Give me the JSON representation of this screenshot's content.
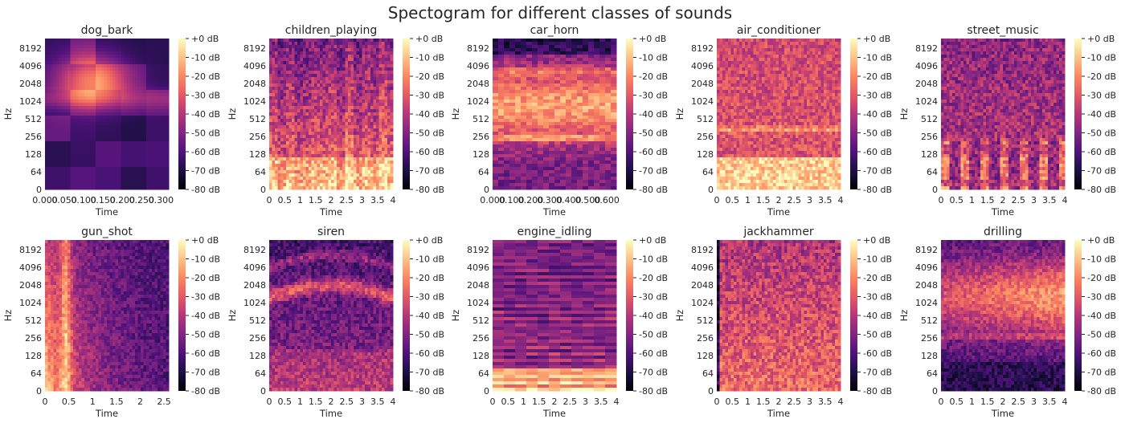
{
  "figure": {
    "title": "Spectogram for different classes of sounds"
  },
  "colormap": {
    "name": "magma",
    "stops": [
      "#000004",
      "#1c1044",
      "#4f127b",
      "#812581",
      "#b5367a",
      "#e55964",
      "#fb8761",
      "#fec287",
      "#fcfdbf"
    ]
  },
  "chart_data": [
    {
      "type": "heatmap",
      "title": "dog_bark",
      "xlabel": "Time",
      "ylabel": "Hz",
      "xlim": [
        0,
        0.32
      ],
      "xticks": [
        "0.000",
        "0.050",
        "0.100",
        "0.150",
        "0.200",
        "0.250",
        "0.300"
      ],
      "xtick_values": [
        0,
        0.05,
        0.1,
        0.15,
        0.2,
        0.25,
        0.3
      ],
      "yticks": [
        "0",
        "64",
        "128",
        "256",
        "512",
        "1024",
        "2048",
        "4096",
        "8192"
      ],
      "colorbar": {
        "min_db": -80,
        "max_db": 0,
        "tick_labels": [
          "+0 dB",
          "-10 dB",
          "-20 dB",
          "-30 dB",
          "-40 dB",
          "-50 dB",
          "-60 dB",
          "-70 dB",
          "-80 dB"
        ]
      }
    },
    {
      "type": "heatmap",
      "title": "children_playing",
      "xlabel": "Time",
      "ylabel": "Hz",
      "xlim": [
        0,
        4
      ],
      "xticks": [
        "0",
        "0.5",
        "1",
        "1.5",
        "2",
        "2.5",
        "3",
        "3.5",
        "4"
      ],
      "xtick_values": [
        0,
        0.5,
        1,
        1.5,
        2,
        2.5,
        3,
        3.5,
        4
      ],
      "yticks": [
        "0",
        "64",
        "128",
        "256",
        "512",
        "1024",
        "2048",
        "4096",
        "8192"
      ],
      "colorbar": {
        "min_db": -80,
        "max_db": 0,
        "tick_labels": [
          "+0 dB",
          "-10 dB",
          "-20 dB",
          "-30 dB",
          "-40 dB",
          "-50 dB",
          "-60 dB",
          "-70 dB",
          "-80 dB"
        ]
      }
    },
    {
      "type": "heatmap",
      "title": "car_horn",
      "xlabel": "Time",
      "ylabel": "Hz",
      "xlim": [
        0,
        0.65
      ],
      "xticks": [
        "0.000",
        "0.100",
        "0.200",
        "0.300",
        "0.400",
        "0.500",
        "0.600"
      ],
      "xtick_values": [
        0,
        0.1,
        0.2,
        0.3,
        0.4,
        0.5,
        0.6
      ],
      "yticks": [
        "0",
        "64",
        "128",
        "256",
        "512",
        "1024",
        "2048",
        "4096",
        "8192"
      ],
      "colorbar": {
        "min_db": -80,
        "max_db": 0,
        "tick_labels": [
          "+0 dB",
          "-10 dB",
          "-20 dB",
          "-30 dB",
          "-40 dB",
          "-50 dB",
          "-60 dB",
          "-70 dB",
          "-80 dB"
        ]
      }
    },
    {
      "type": "heatmap",
      "title": "air_conditioner",
      "xlabel": "Time",
      "ylabel": "Hz",
      "xlim": [
        0,
        4
      ],
      "xticks": [
        "0",
        "0.5",
        "1",
        "1.5",
        "2",
        "2.5",
        "3",
        "3.5",
        "4"
      ],
      "xtick_values": [
        0,
        0.5,
        1,
        1.5,
        2,
        2.5,
        3,
        3.5,
        4
      ],
      "yticks": [
        "0",
        "64",
        "128",
        "256",
        "512",
        "1024",
        "2048",
        "4096",
        "8192"
      ],
      "colorbar": {
        "min_db": -80,
        "max_db": 0,
        "tick_labels": [
          "+0 dB",
          "-10 dB",
          "-20 dB",
          "-30 dB",
          "-40 dB",
          "-50 dB",
          "-60 dB",
          "-70 dB",
          "-80 dB"
        ]
      }
    },
    {
      "type": "heatmap",
      "title": "street_music",
      "xlabel": "Time",
      "ylabel": "Hz",
      "xlim": [
        0,
        4
      ],
      "xticks": [
        "0",
        "0.5",
        "1",
        "1.5",
        "2",
        "2.5",
        "3",
        "3.5",
        "4"
      ],
      "xtick_values": [
        0,
        0.5,
        1,
        1.5,
        2,
        2.5,
        3,
        3.5,
        4
      ],
      "yticks": [
        "0",
        "64",
        "128",
        "256",
        "512",
        "1024",
        "2048",
        "4096",
        "8192"
      ],
      "colorbar": {
        "min_db": -80,
        "max_db": 0,
        "tick_labels": [
          "+0 dB",
          "-10 dB",
          "-20 dB",
          "-30 dB",
          "-40 dB",
          "-50 dB",
          "-60 dB",
          "-70 dB",
          "-80 dB"
        ]
      }
    },
    {
      "type": "heatmap",
      "title": "gun_shot",
      "xlabel": "Time",
      "ylabel": "Hz",
      "xlim": [
        0,
        2.6
      ],
      "xticks": [
        "0",
        "0.5",
        "1",
        "1.5",
        "2",
        "2.5"
      ],
      "xtick_values": [
        0,
        0.5,
        1,
        1.5,
        2,
        2.5
      ],
      "yticks": [
        "0",
        "64",
        "128",
        "256",
        "512",
        "1024",
        "2048",
        "4096",
        "8192"
      ],
      "colorbar": {
        "min_db": -80,
        "max_db": 0,
        "tick_labels": [
          "+0 dB",
          "-10 dB",
          "-20 dB",
          "-30 dB",
          "-40 dB",
          "-50 dB",
          "-60 dB",
          "-70 dB",
          "-80 dB"
        ]
      }
    },
    {
      "type": "heatmap",
      "title": "siren",
      "xlabel": "Time",
      "ylabel": "Hz",
      "xlim": [
        0,
        4
      ],
      "xticks": [
        "0",
        "0.5",
        "1",
        "1.5",
        "2",
        "2.5",
        "3",
        "3.5",
        "4"
      ],
      "xtick_values": [
        0,
        0.5,
        1,
        1.5,
        2,
        2.5,
        3,
        3.5,
        4
      ],
      "yticks": [
        "0",
        "64",
        "128",
        "256",
        "512",
        "1024",
        "2048",
        "4096",
        "8192"
      ],
      "colorbar": {
        "min_db": -80,
        "max_db": 0,
        "tick_labels": [
          "+0 dB",
          "-10 dB",
          "-20 dB",
          "-30 dB",
          "-40 dB",
          "-50 dB",
          "-60 dB",
          "-70 dB",
          "-80 dB"
        ]
      }
    },
    {
      "type": "heatmap",
      "title": "engine_idling",
      "xlabel": "Time",
      "ylabel": "Hz",
      "xlim": [
        0,
        4
      ],
      "xticks": [
        "0",
        "0.5",
        "1",
        "1.5",
        "2",
        "2.5",
        "3",
        "3.5",
        "4"
      ],
      "xtick_values": [
        0,
        0.5,
        1,
        1.5,
        2,
        2.5,
        3,
        3.5,
        4
      ],
      "yticks": [
        "0",
        "64",
        "128",
        "256",
        "512",
        "1024",
        "2048",
        "4096",
        "8192"
      ],
      "colorbar": {
        "min_db": -80,
        "max_db": 0,
        "tick_labels": [
          "+0 dB",
          "-10 dB",
          "-20 dB",
          "-30 dB",
          "-40 dB",
          "-50 dB",
          "-60 dB",
          "-70 dB",
          "-80 dB"
        ]
      }
    },
    {
      "type": "heatmap",
      "title": "jackhammer",
      "xlabel": "Time",
      "ylabel": "Hz",
      "xlim": [
        0,
        4
      ],
      "xticks": [
        "0",
        "0.5",
        "1",
        "1.5",
        "2",
        "2.5",
        "3",
        "3.5",
        "4"
      ],
      "xtick_values": [
        0,
        0.5,
        1,
        1.5,
        2,
        2.5,
        3,
        3.5,
        4
      ],
      "yticks": [
        "0",
        "64",
        "128",
        "256",
        "512",
        "1024",
        "2048",
        "4096",
        "8192"
      ],
      "colorbar": {
        "min_db": -80,
        "max_db": 0,
        "tick_labels": [
          "+0 dB",
          "-10 dB",
          "-20 dB",
          "-30 dB",
          "-40 dB",
          "-50 dB",
          "-60 dB",
          "-70 dB",
          "-80 dB"
        ]
      }
    },
    {
      "type": "heatmap",
      "title": "drilling",
      "xlabel": "Time",
      "ylabel": "Hz",
      "xlim": [
        0,
        4
      ],
      "xticks": [
        "0",
        "0.5",
        "1",
        "1.5",
        "2",
        "2.5",
        "3",
        "3.5",
        "4"
      ],
      "xtick_values": [
        0,
        0.5,
        1,
        1.5,
        2,
        2.5,
        3,
        3.5,
        4
      ],
      "yticks": [
        "0",
        "64",
        "128",
        "256",
        "512",
        "1024",
        "2048",
        "4096",
        "8192"
      ],
      "colorbar": {
        "min_db": -80,
        "max_db": 0,
        "tick_labels": [
          "+0 dB",
          "-10 dB",
          "-20 dB",
          "-30 dB",
          "-40 dB",
          "-50 dB",
          "-60 dB",
          "-70 dB",
          "-80 dB"
        ]
      }
    }
  ]
}
